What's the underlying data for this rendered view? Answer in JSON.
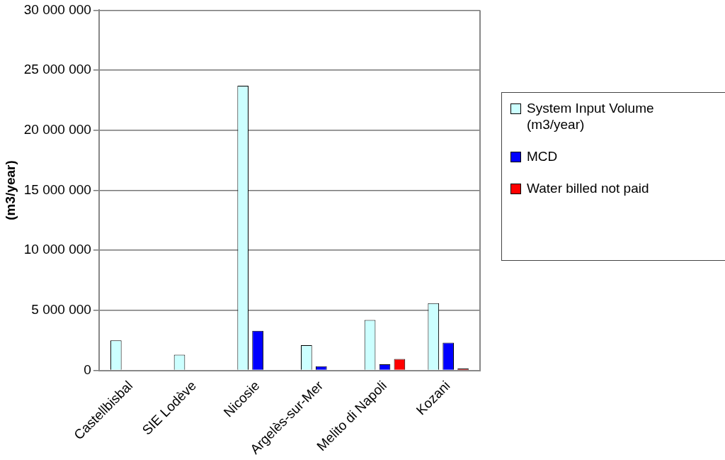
{
  "chart_data": {
    "type": "bar",
    "ylabel": "(m3/year)",
    "categories": [
      "Castellbisbal",
      "SIE Lodève",
      "Nicosie",
      "Argelès-sur-Mer",
      "Melito di Napoli",
      "Kozani"
    ],
    "series": [
      {
        "name": "System Input Volume (m3/year)",
        "color": "#ccffff",
        "values": [
          2500000,
          1300000,
          23700000,
          2100000,
          4200000,
          5600000
        ]
      },
      {
        "name": "MCD",
        "color": "#0000ff",
        "values": [
          null,
          null,
          3300000,
          350000,
          500000,
          2300000
        ]
      },
      {
        "name": "Water billed not paid",
        "color": "#ff0000",
        "values": [
          null,
          null,
          null,
          null,
          950000,
          150000
        ]
      }
    ],
    "ylim": [
      0,
      30000000
    ],
    "yticks": [
      {
        "value": 0,
        "label": "0"
      },
      {
        "value": 5000000,
        "label": "5 000 000"
      },
      {
        "value": 10000000,
        "label": "10 000 000"
      },
      {
        "value": 15000000,
        "label": "15 000 000"
      },
      {
        "value": 20000000,
        "label": "20 000 000"
      },
      {
        "value": 25000000,
        "label": "25 000 000"
      },
      {
        "value": 30000000,
        "label": "30 000 000"
      }
    ],
    "grid": "y",
    "legend": "right"
  }
}
